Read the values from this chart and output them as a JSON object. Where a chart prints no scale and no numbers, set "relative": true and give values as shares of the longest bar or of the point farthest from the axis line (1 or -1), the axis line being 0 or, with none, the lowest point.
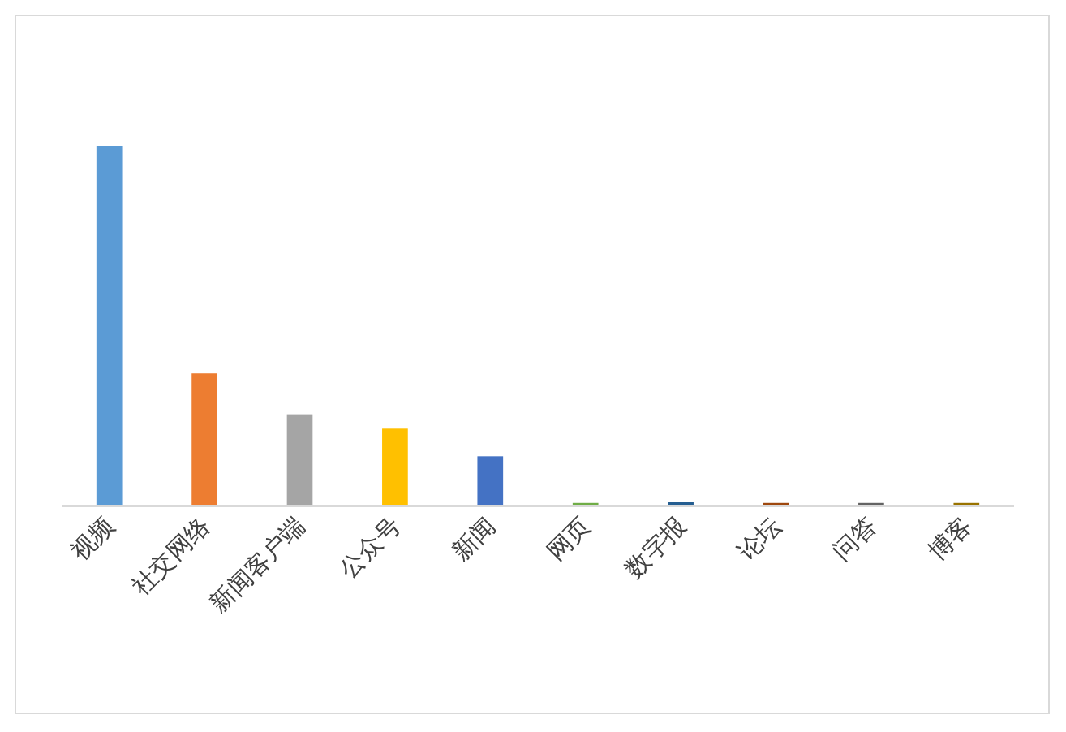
{
  "chart_data": {
    "type": "bar",
    "relative": true,
    "categories": [
      "视频",
      "社交网络",
      "新闻客户端",
      "公众号",
      "新闻",
      "网页",
      "数字报",
      "论坛",
      "问答",
      "博客"
    ],
    "values": [
      1,
      0.366,
      0.252,
      0.212,
      0.135,
      0.005,
      0.009,
      0.005,
      0.005,
      0.005
    ],
    "colors": [
      "#5b9bd5",
      "#ed7d31",
      "#a5a5a5",
      "#ffc000",
      "#4472c4",
      "#70ad47",
      "#255e91",
      "#9e480e",
      "#636363",
      "#997300"
    ]
  }
}
